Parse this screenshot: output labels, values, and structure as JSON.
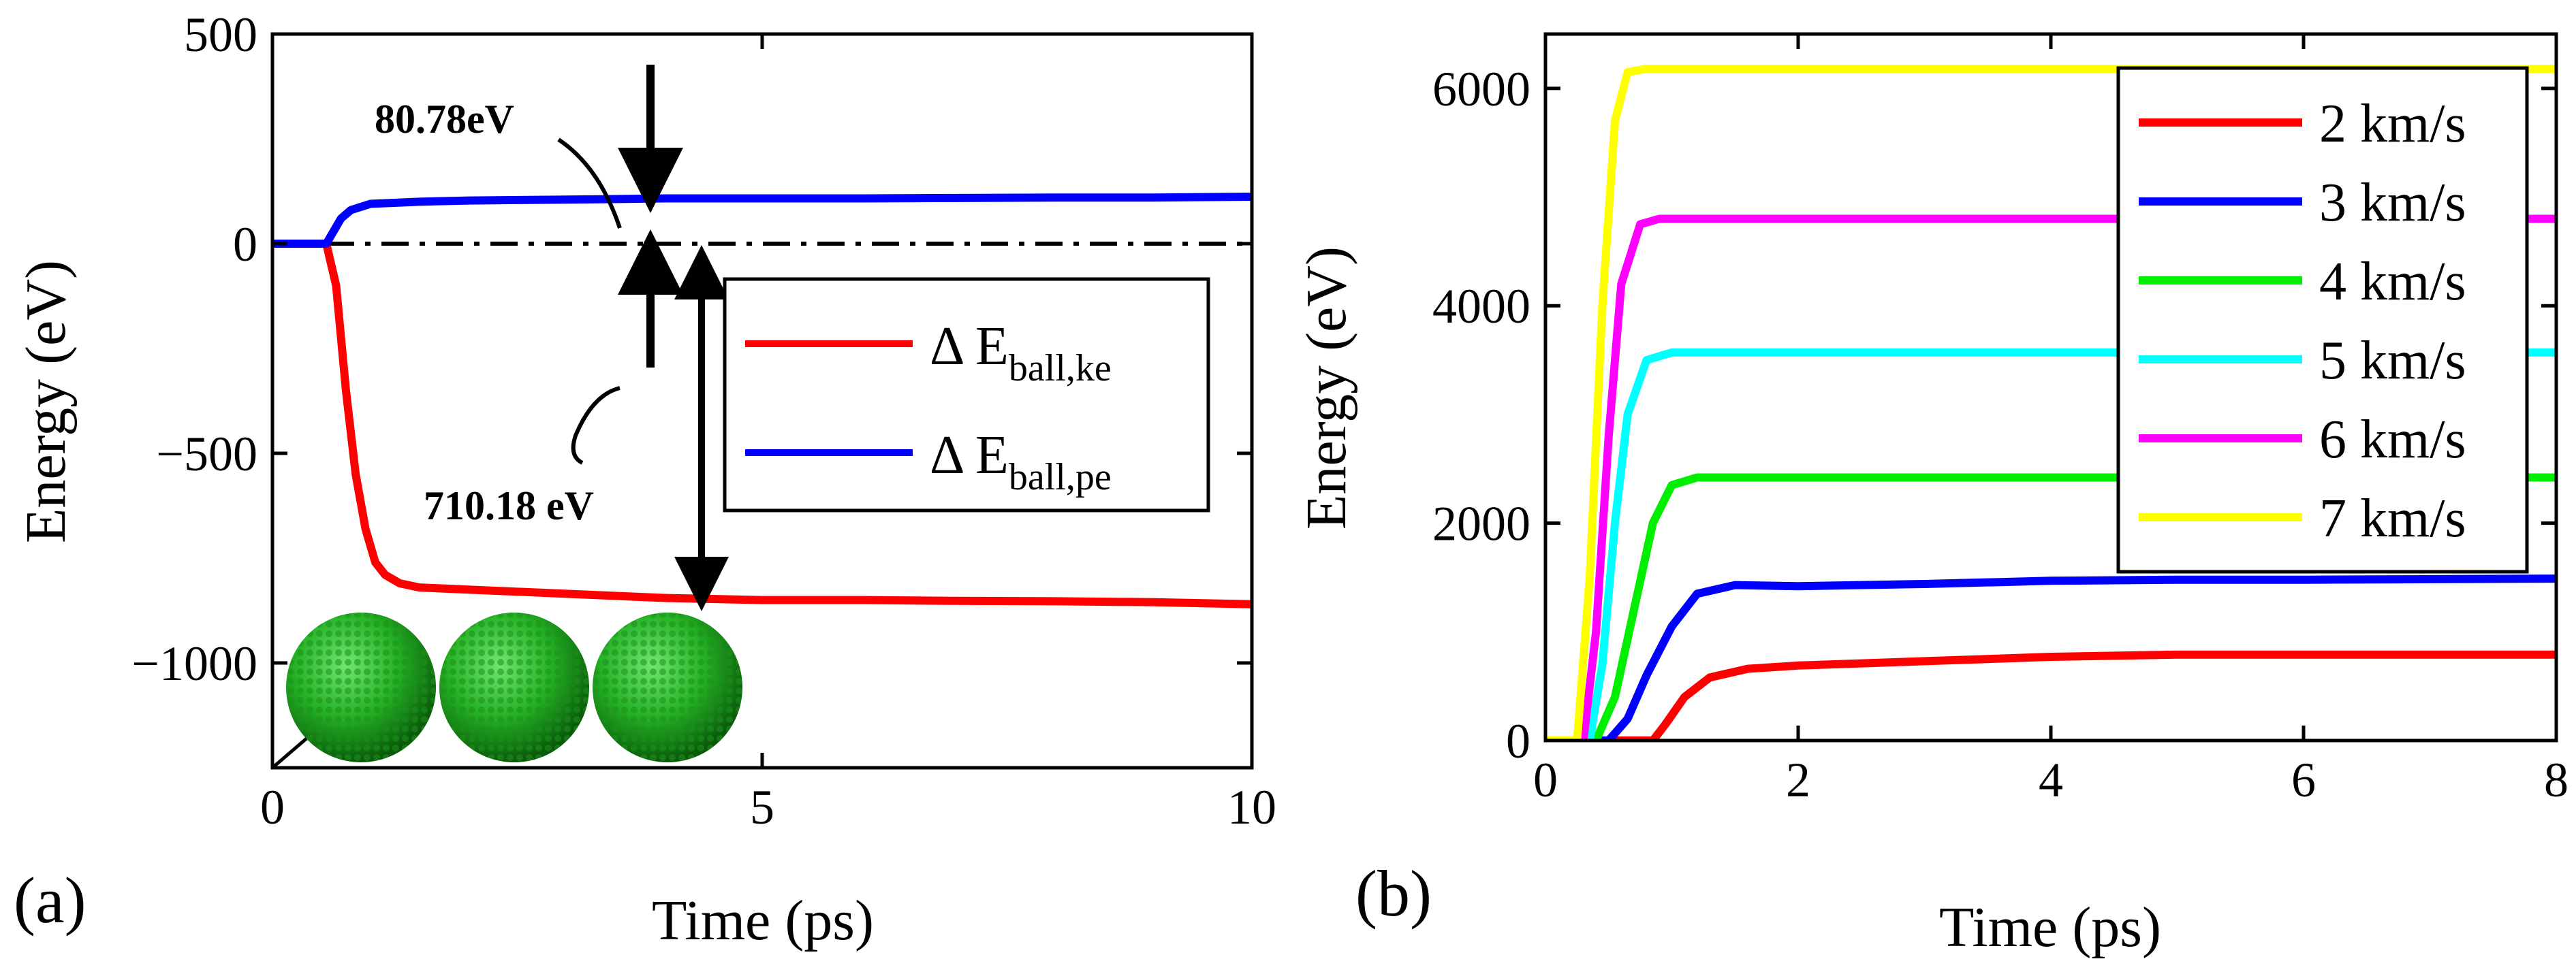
{
  "chart_data": [
    {
      "panel_label": "(a)",
      "type": "line",
      "xlabel": "Time (ps)",
      "ylabel": "Energy (eV)",
      "xlim": [
        0,
        10
      ],
      "ylim": [
        -1250,
        500
      ],
      "xticks": [
        0,
        5,
        10
      ],
      "yticks": [
        500,
        0,
        -500,
        -1000
      ],
      "ytick_labels": [
        "500",
        "0",
        "−500",
        "−1000"
      ],
      "series": [
        {
          "name": "Δ E",
          "subscript": "ball,ke",
          "color": "#ff0000",
          "x": [
            0,
            0.55,
            0.65,
            0.75,
            0.85,
            0.95,
            1.05,
            1.15,
            1.3,
            1.5,
            2,
            3,
            4,
            5,
            6,
            7,
            8,
            9,
            10
          ],
          "y": [
            0,
            0,
            -100,
            -350,
            -550,
            -680,
            -760,
            -790,
            -810,
            -820,
            -825,
            -835,
            -845,
            -850,
            -850,
            -852,
            -853,
            -855,
            -860
          ]
        },
        {
          "name": "Δ E",
          "subscript": "ball,pe",
          "color": "#0000ff",
          "x": [
            0,
            0.55,
            0.7,
            0.8,
            1.0,
            1.5,
            2,
            3,
            4,
            5,
            6,
            7,
            8,
            9,
            10
          ],
          "y": [
            0,
            0,
            60,
            80,
            95,
            100,
            103,
            105,
            108,
            108,
            108,
            109,
            110,
            110,
            112
          ]
        }
      ],
      "reference_line": {
        "y": 0,
        "style": "dash-dot"
      },
      "annotations": [
        {
          "text": "80.78eV"
        },
        {
          "text": "710.18 eV"
        }
      ],
      "inset": "three green nanoparticle spheres"
    },
    {
      "panel_label": "(b)",
      "type": "line",
      "xlabel": "Time (ps)",
      "ylabel": "Energy (eV)",
      "xlim": [
        0,
        8
      ],
      "ylim": [
        0,
        6500
      ],
      "xticks": [
        0,
        2,
        4,
        6,
        8
      ],
      "yticks": [
        0,
        2000,
        4000,
        6000
      ],
      "legend_position": "top-right",
      "series": [
        {
          "name": "2 km/s",
          "color": "#ff0000",
          "x": [
            0,
            0.85,
            0.95,
            1.1,
            1.3,
            1.6,
            2,
            3,
            4,
            5,
            6,
            7,
            8
          ],
          "y": [
            0,
            0,
            150,
            400,
            580,
            660,
            690,
            730,
            770,
            790,
            790,
            790,
            790
          ]
        },
        {
          "name": "3 km/s",
          "color": "#0000ff",
          "x": [
            0,
            0.5,
            0.65,
            0.8,
            1.0,
            1.2,
            1.5,
            2,
            3,
            4,
            5,
            6,
            7,
            8
          ],
          "y": [
            0,
            0,
            200,
            600,
            1050,
            1350,
            1430,
            1420,
            1440,
            1470,
            1480,
            1480,
            1485,
            1490
          ]
        },
        {
          "name": "4 km/s",
          "color": "#00ee00",
          "x": [
            0,
            0.4,
            0.55,
            0.7,
            0.85,
            1.0,
            1.2,
            2,
            4,
            6,
            8
          ],
          "y": [
            0,
            0,
            400,
            1200,
            2000,
            2350,
            2420,
            2420,
            2420,
            2420,
            2420
          ]
        },
        {
          "name": "5 km/s",
          "color": "#00ffff",
          "x": [
            0,
            0.35,
            0.45,
            0.55,
            0.65,
            0.8,
            1.0,
            2,
            4,
            6,
            8
          ],
          "y": [
            0,
            0,
            700,
            2000,
            3000,
            3500,
            3570,
            3570,
            3570,
            3570,
            3570
          ]
        },
        {
          "name": "6 km/s",
          "color": "#ff00ff",
          "x": [
            0,
            0.3,
            0.4,
            0.5,
            0.6,
            0.75,
            0.9,
            2,
            4,
            6,
            8
          ],
          "y": [
            0,
            0,
            1000,
            2800,
            4200,
            4750,
            4800,
            4800,
            4800,
            4800,
            4800
          ]
        },
        {
          "name": "7 km/s",
          "color": "#ffff00",
          "x": [
            0,
            0.25,
            0.35,
            0.45,
            0.55,
            0.65,
            0.8,
            2,
            4,
            6,
            8
          ],
          "y": [
            0,
            0,
            1500,
            4000,
            5700,
            6150,
            6180,
            6180,
            6180,
            6180,
            6180
          ]
        }
      ]
    }
  ]
}
